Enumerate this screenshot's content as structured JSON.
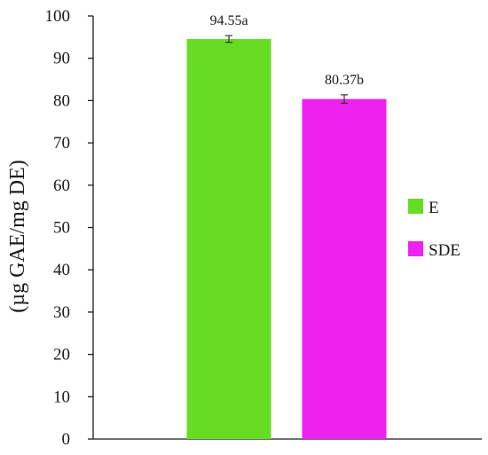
{
  "chart_data": {
    "type": "bar",
    "categories": [
      "E",
      "SDE"
    ],
    "values": [
      94.55,
      80.37
    ],
    "errors": [
      0.8,
      1.0
    ],
    "data_labels": [
      "94.55a",
      "80.37b"
    ],
    "colors": [
      "#66dd22",
      "#ee22ee"
    ],
    "title": "",
    "xlabel": "",
    "ylabel": "(µg GAE/mg DE)",
    "ylim": [
      0,
      100
    ],
    "yticks": [
      "0",
      "10",
      "20",
      "30",
      "40",
      "50",
      "60",
      "70",
      "80",
      "90",
      "100"
    ],
    "grid": false,
    "legend": {
      "placement": "right",
      "entries": [
        {
          "label": "E",
          "color": "#66dd22"
        },
        {
          "label": "SDE",
          "color": "#ee22ee"
        }
      ]
    }
  }
}
